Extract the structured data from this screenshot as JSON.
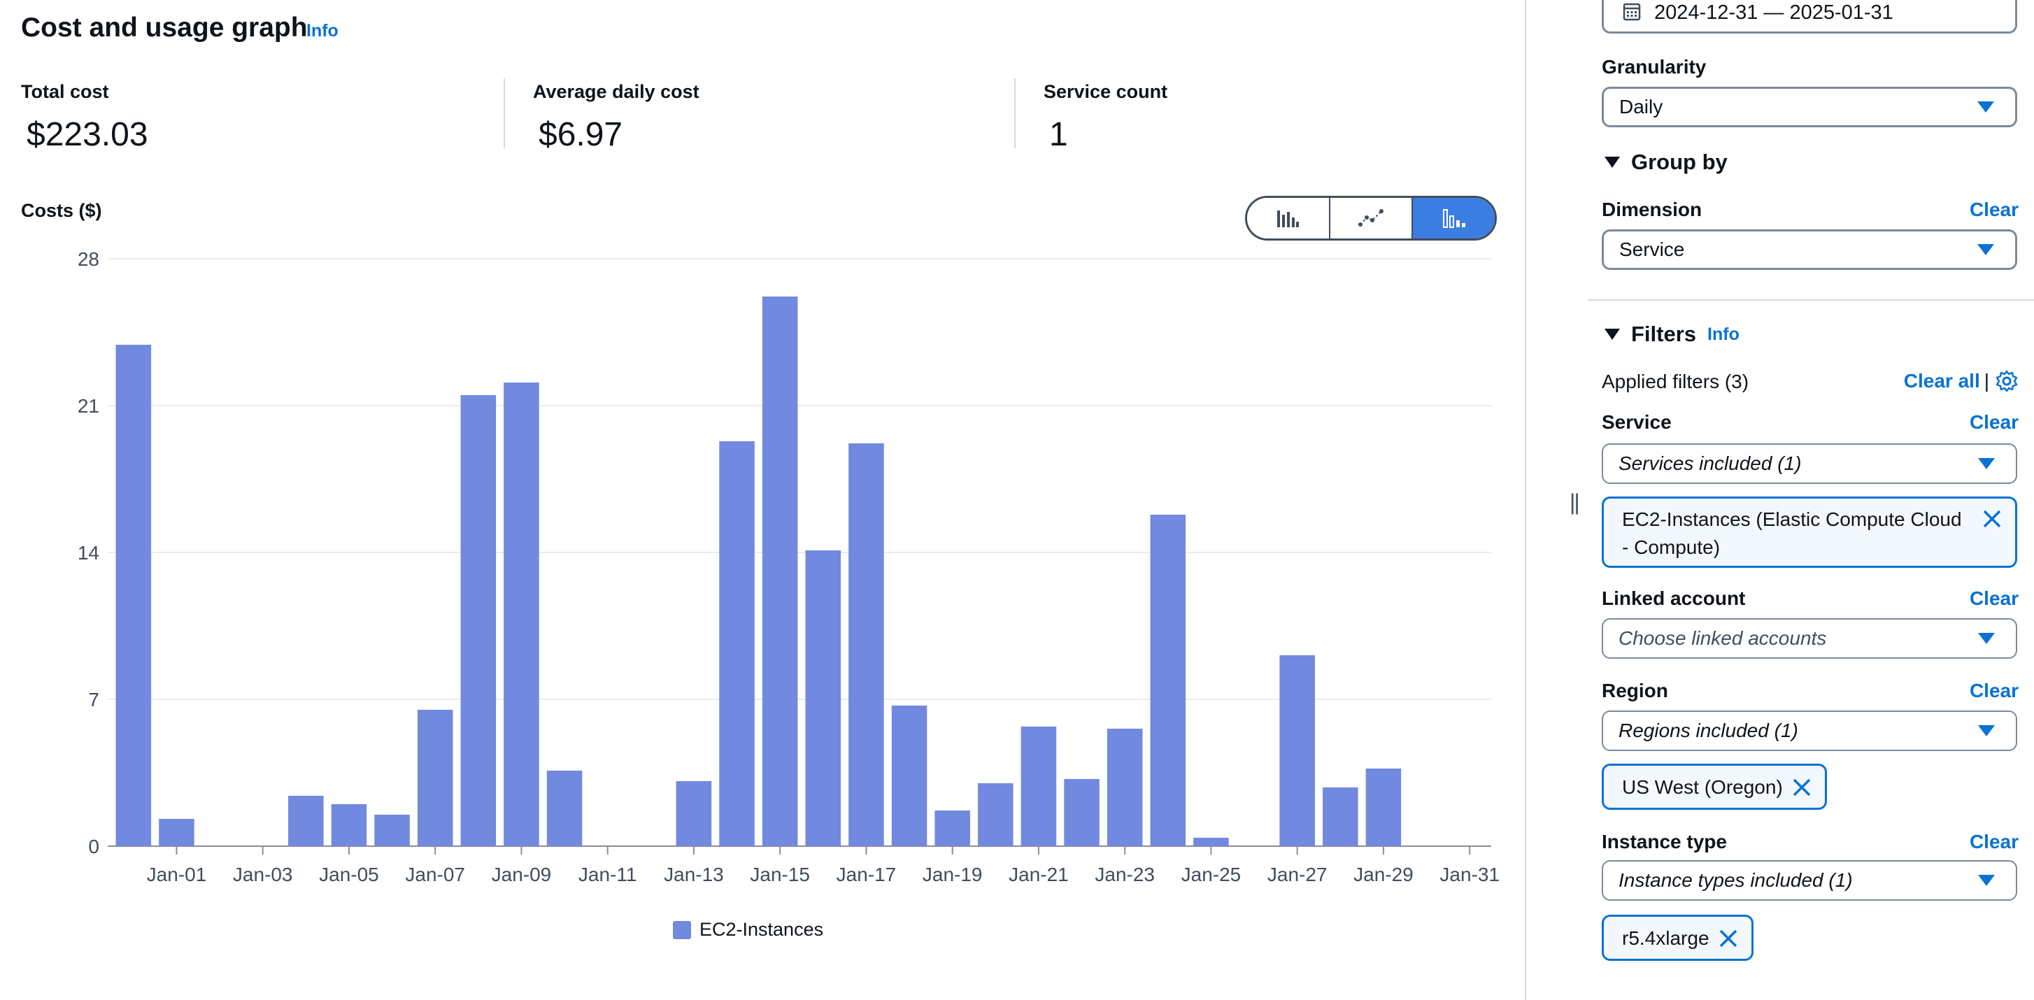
{
  "header": {
    "title": "Cost and usage graph",
    "info": "Info"
  },
  "kpis": [
    {
      "label": "Total cost",
      "value": "$223.03"
    },
    {
      "label": "Average daily cost",
      "value": "$6.97"
    },
    {
      "label": "Service count",
      "value": "1"
    }
  ],
  "chart_toggle": {
    "options": [
      {
        "icon": "bar-chart-icon"
      },
      {
        "icon": "line-chart-icon"
      },
      {
        "icon": "stacked-bar-chart-icon",
        "selected": true
      }
    ]
  },
  "chart_data": {
    "type": "bar",
    "ylabel": "Costs ($)",
    "ylim": [
      0,
      28
    ],
    "yticks": [
      0,
      7,
      14,
      21,
      28
    ],
    "xticks": [
      "Jan-01",
      "Jan-03",
      "Jan-05",
      "Jan-07",
      "Jan-09",
      "Jan-11",
      "Jan-13",
      "Jan-15",
      "Jan-17",
      "Jan-19",
      "Jan-21",
      "Jan-23",
      "Jan-25",
      "Jan-27",
      "Jan-29",
      "Jan-31"
    ],
    "x": [
      "2024-12-31",
      "2025-01-01",
      "2025-01-02",
      "2025-01-03",
      "2025-01-04",
      "2025-01-05",
      "2025-01-06",
      "2025-01-07",
      "2025-01-08",
      "2025-01-09",
      "2025-01-10",
      "2025-01-11",
      "2025-01-12",
      "2025-01-13",
      "2025-01-14",
      "2025-01-15",
      "2025-01-16",
      "2025-01-17",
      "2025-01-18",
      "2025-01-19",
      "2025-01-20",
      "2025-01-21",
      "2025-01-22",
      "2025-01-23",
      "2025-01-24",
      "2025-01-25",
      "2025-01-26",
      "2025-01-27",
      "2025-01-28",
      "2025-01-29",
      "2025-01-30",
      "2025-01-31"
    ],
    "series": [
      {
        "name": "EC2-Instances",
        "color": "#7289e0",
        "values": [
          23.9,
          1.3,
          0,
          0,
          2.4,
          2.0,
          1.5,
          6.5,
          21.5,
          22.1,
          3.6,
          0,
          0,
          3.1,
          19.3,
          26.2,
          14.1,
          19.2,
          6.7,
          1.7,
          3.0,
          5.7,
          3.2,
          5.6,
          15.8,
          0.4,
          0,
          9.1,
          2.8,
          3.7,
          0,
          0
        ]
      }
    ],
    "legend": "bottom-center",
    "grid": true
  },
  "filters_panel": {
    "date_range": "2024-12-31 — 2025-01-31",
    "granularity": {
      "label": "Granularity",
      "value": "Daily"
    },
    "group_by": {
      "title": "Group by",
      "dimension": {
        "label": "Dimension",
        "value": "Service",
        "clear": "Clear"
      }
    },
    "filters": {
      "title": "Filters",
      "info": "Info",
      "applied": "Applied filters (3)",
      "clear_all": "Clear all",
      "separator": "|",
      "service": {
        "label": "Service",
        "clear": "Clear",
        "value": "Services included (1)",
        "token": "EC2-Instances (Elastic Compute Cloud - Compute)"
      },
      "linked_account": {
        "label": "Linked account",
        "clear": "Clear",
        "placeholder": "Choose linked accounts"
      },
      "region": {
        "label": "Region",
        "clear": "Clear",
        "value": "Regions included (1)",
        "token": "US West (Oregon)"
      },
      "instance_type": {
        "label": "Instance type",
        "clear": "Clear",
        "value": "Instance types included (1)",
        "token": "r5.4xlarge"
      }
    }
  }
}
